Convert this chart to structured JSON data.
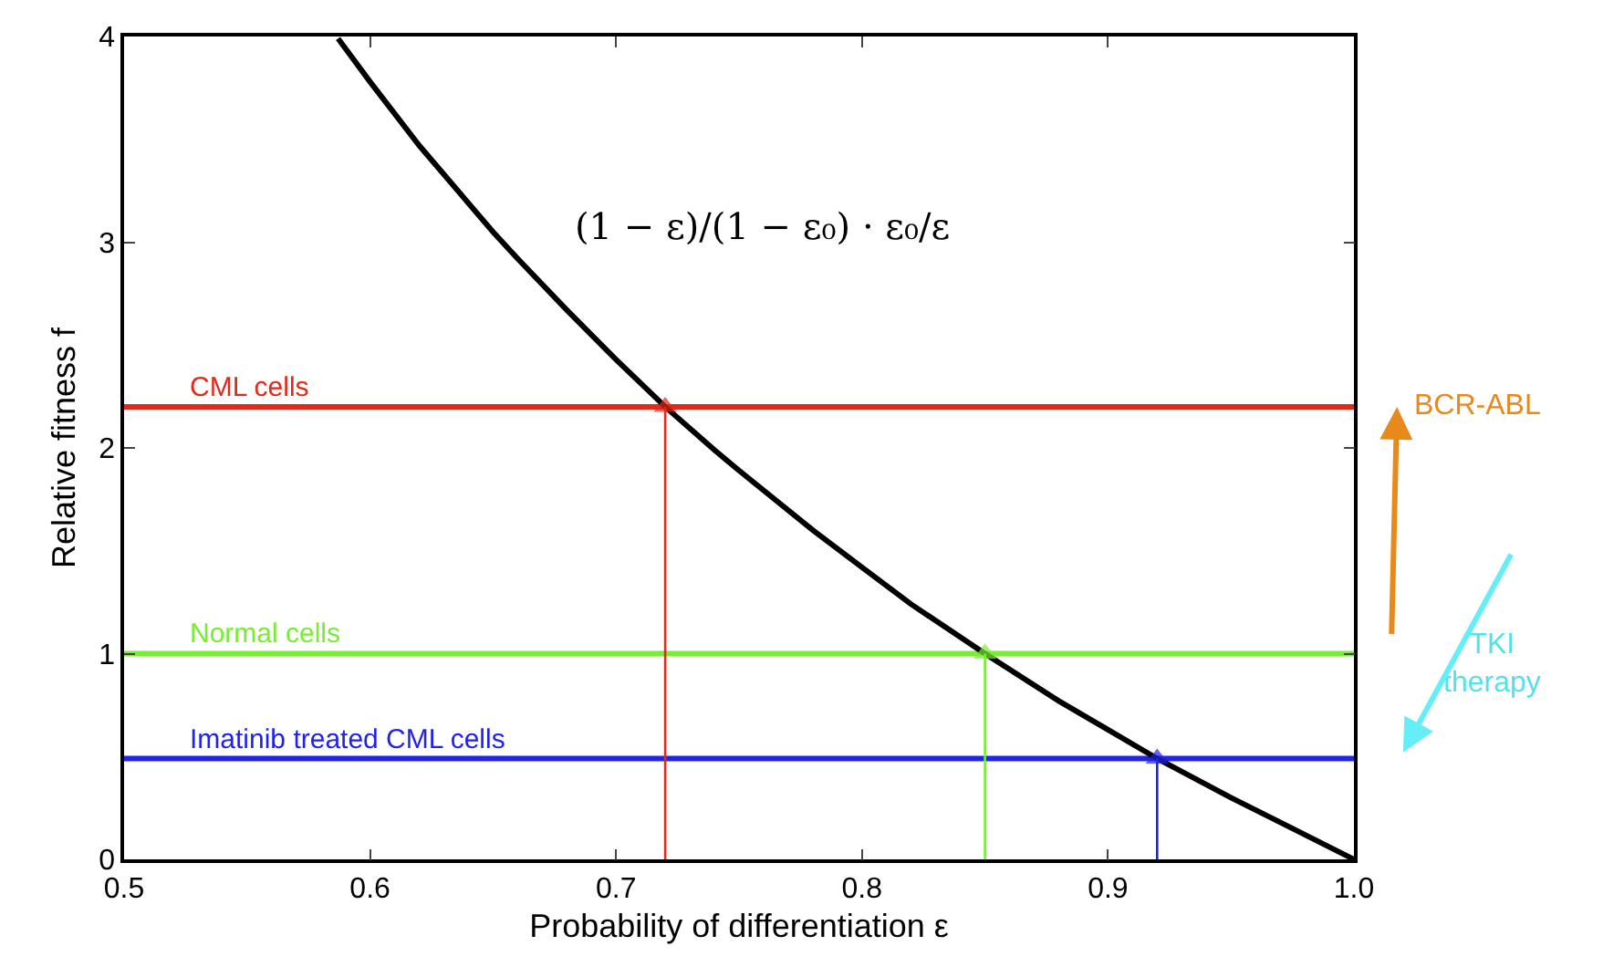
{
  "chart_data": {
    "type": "line",
    "xlabel": "Probability of differentiation ε",
    "ylabel": "Relative fitness f",
    "xlim": [
      0.5,
      1.0
    ],
    "xticks": [
      {
        "value": 0.5,
        "label": "0.5"
      },
      {
        "value": 0.6,
        "label": "0.6"
      },
      {
        "value": 0.7,
        "label": "0.7"
      },
      {
        "value": 0.8,
        "label": "0.8"
      },
      {
        "value": 0.9,
        "label": "0.9"
      },
      {
        "value": 1.0,
        "label": "1.0"
      }
    ],
    "ylim": [
      0,
      4
    ],
    "yticks": [
      0,
      1,
      2,
      3,
      4
    ],
    "line_style": "solid",
    "series": [
      {
        "color": "#000000",
        "x": [
          0.587,
          0.6,
          0.62,
          0.65,
          0.66,
          0.68,
          0.7,
          0.72,
          0.74,
          0.75,
          0.78,
          0.8,
          0.82,
          0.85,
          0.88,
          0.9,
          0.92,
          0.95,
          0.97,
          1.0
        ],
        "values": [
          3.99,
          3.78,
          3.47,
          3.05,
          2.92,
          2.67,
          2.43,
          2.2,
          1.99,
          1.89,
          1.6,
          1.42,
          1.24,
          1.0,
          0.77,
          0.63,
          0.49,
          0.3,
          0.18,
          0
        ]
      },
      {
        "color": "#e02a1a",
        "x": [
          0.72,
          0.72
        ],
        "values": [
          0,
          2.2
        ],
        "marker": "triangle"
      },
      {
        "color": "#77ee33",
        "x": [
          0.85,
          0.85
        ],
        "values": [
          0,
          1.0
        ],
        "marker": "triangle"
      },
      {
        "color": "#2222ee",
        "x": [
          0.92,
          0.92
        ],
        "values": [
          0,
          0.49
        ],
        "marker": "triangle"
      }
    ],
    "ref_lines": [
      {
        "axis": "y",
        "value": 2.2,
        "label": "CML cells",
        "color": "#e02a1a"
      },
      {
        "axis": "y",
        "value": 1.0,
        "label": "Normal cells",
        "color": "#77ee33"
      },
      {
        "axis": "y",
        "value": 0.49,
        "label": "Imatinib treated CML cells",
        "color": "#2222ee"
      }
    ],
    "annotations": [
      "(1 − ε)/(1 − ε₀) · ε₀/ε",
      "BCR-ABL",
      "TKI\ntherapy"
    ]
  }
}
